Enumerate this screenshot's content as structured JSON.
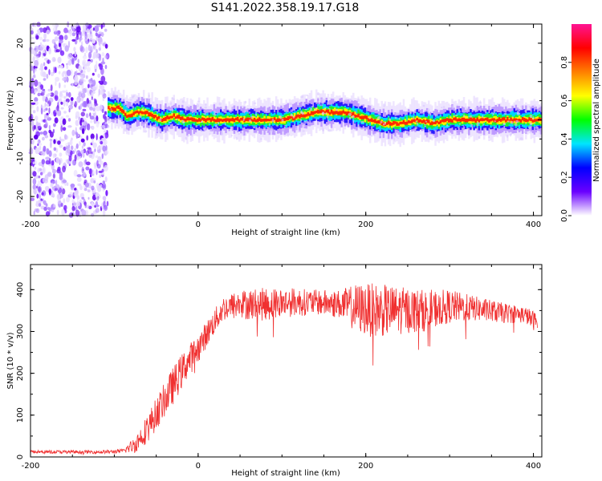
{
  "title": "S141.2022.358.19.17.G18",
  "chart_data": [
    {
      "type": "heatmap",
      "xlabel": "Height of straight line (km)",
      "ylabel": "Frequency (Hz)",
      "xlim": [
        -200,
        410
      ],
      "ylim": [
        -25,
        25
      ],
      "x_ticks": [
        -200,
        0,
        200,
        400
      ],
      "y_ticks": [
        -20,
        -10,
        0,
        10,
        20
      ],
      "colorbar": {
        "label": "Normalized spectral amplitude",
        "range": [
          0,
          1
        ],
        "ticks": [
          "0.0",
          "0.2",
          "0.4",
          "0.6",
          "0.8"
        ],
        "colors": [
          "#ffffff",
          "#6a00ff",
          "#0000ff",
          "#00e5ff",
          "#00ff00",
          "#ffff00",
          "#ff7f00",
          "#ff0000",
          "#ff1493"
        ]
      },
      "noise_region_x": [
        -200,
        -108
      ],
      "ridge": {
        "x": [
          -108,
          -95,
          -85,
          -75,
          -65,
          -55,
          -45,
          -30,
          -15,
          0,
          20,
          40,
          60,
          80,
          100,
          120,
          140,
          160,
          175,
          190,
          205,
          220,
          240,
          260,
          280,
          300,
          320,
          340,
          360,
          380,
          400,
          408
        ],
        "y": [
          3,
          3,
          1,
          2,
          2,
          1,
          0,
          1,
          0,
          0,
          0,
          0,
          0,
          0,
          0,
          1,
          2,
          2,
          2,
          1,
          0,
          -1,
          -1,
          0,
          -1,
          0,
          0,
          0,
          0,
          0,
          0,
          0
        ],
        "width_hz": 1.2
      }
    },
    {
      "type": "line",
      "xlabel": "Height of straight line (km)",
      "ylabel": "SNR (10 * v/v)",
      "xlim": [
        -200,
        410
      ],
      "ylim": [
        0,
        460
      ],
      "x_ticks": [
        -200,
        0,
        200,
        400
      ],
      "y_ticks": [
        0,
        100,
        200,
        300,
        400
      ],
      "color": "#f03030",
      "series": [
        {
          "x": [
            -200,
            -150,
            -110,
            -90,
            -75,
            -60,
            -45,
            -30,
            -15,
            0,
            15,
            30,
            50,
            80,
            110,
            140,
            170,
            190,
            210,
            230,
            250,
            270,
            300,
            330,
            360,
            390,
            405
          ],
          "values": [
            12,
            12,
            12,
            14,
            30,
            70,
            120,
            170,
            220,
            260,
            310,
            355,
            365,
            365,
            370,
            370,
            365,
            355,
            350,
            350,
            350,
            350,
            360,
            355,
            345,
            340,
            320
          ],
          "noise": [
            4,
            4,
            4,
            5,
            20,
            35,
            40,
            45,
            40,
            35,
            30,
            30,
            35,
            40,
            35,
            30,
            35,
            60,
            65,
            60,
            55,
            50,
            40,
            30,
            25,
            20,
            25
          ]
        }
      ]
    }
  ]
}
